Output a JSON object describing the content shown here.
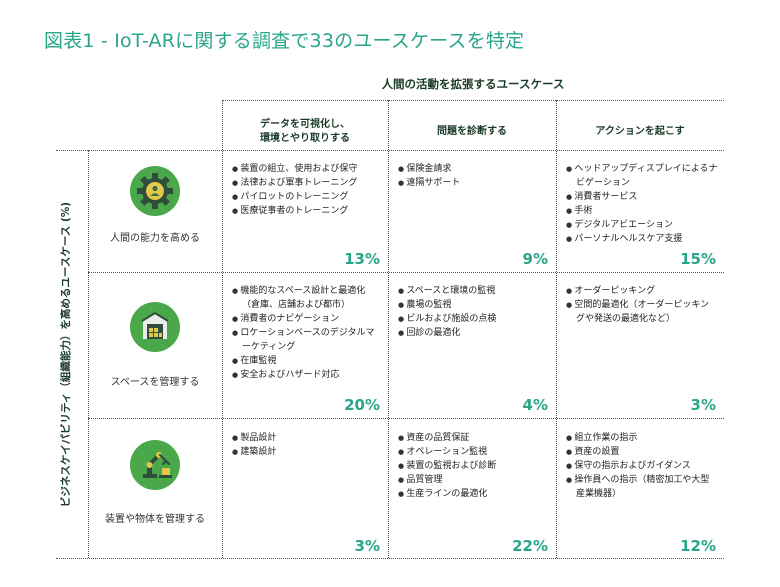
{
  "title": "図表1 - IoT-ARに関する調査で33のユースケースを特定",
  "top_header": "人間の活動を拡張するユースケース",
  "side_label": "ビジネスケイパビリティ（組織能力）を高めるユースケース (%)",
  "columns": [
    {
      "label": "データを可視化し、\n環境とやり取りする"
    },
    {
      "label": "問題を診断する"
    },
    {
      "label": "アクションを起こす"
    }
  ],
  "rows": [
    {
      "label": "人間の能力を高める",
      "icon": "person-gear-icon",
      "cells": [
        {
          "items": [
            "装置の組立、使用および保守",
            "法律および軍事トレーニング",
            "パイロットのトレーニング",
            "医療従事者のトレーニング"
          ],
          "pct": "13%"
        },
        {
          "items": [
            "保険金請求",
            "遠隔サポート"
          ],
          "pct": "9%"
        },
        {
          "items": [
            "ヘッドアップディスプレイによるナビゲーション",
            "消費者サービス",
            "手術",
            "デジタルアビエーション",
            "パーソナルヘルスケア支援"
          ],
          "pct": "15%"
        }
      ]
    },
    {
      "label": "スペースを管理する",
      "icon": "warehouse-icon",
      "cells": [
        {
          "items": [
            "機能的なスペース設計と最適化（倉庫、店舗および都市）",
            "消費者のナビゲーション",
            "ロケーションベースのデジタルマーケティング",
            "在庫監視",
            "安全およびハザード対応"
          ],
          "pct": "20%"
        },
        {
          "items": [
            "スペースと環境の監視",
            "農場の監視",
            "ビルおよび施設の点検",
            "回診の最適化"
          ],
          "pct": "4%"
        },
        {
          "items": [
            "オーダーピッキング",
            "空間的最適化（オーダーピッキングや発送の最適化など）"
          ],
          "pct": "3%"
        }
      ]
    },
    {
      "label": "装置や物体を管理する",
      "icon": "robot-arm-icon",
      "cells": [
        {
          "items": [
            "製品設計",
            "建築設計"
          ],
          "pct": "3%"
        },
        {
          "items": [
            "資産の品質保証",
            "オペレーション監視",
            "装置の監視および診断",
            "品質管理",
            "生産ラインの最適化"
          ],
          "pct": "22%"
        },
        {
          "items": [
            "組立作業の指示",
            "資産の設置",
            "保守の指示およびガイダンス",
            "操作員への指示（精密加工や大型産業機器）"
          ],
          "pct": "12%"
        }
      ]
    }
  ],
  "colors": {
    "accent": "#2aa58a",
    "icon_green": "#4aa84a",
    "icon_dark": "#3b6b4a"
  }
}
